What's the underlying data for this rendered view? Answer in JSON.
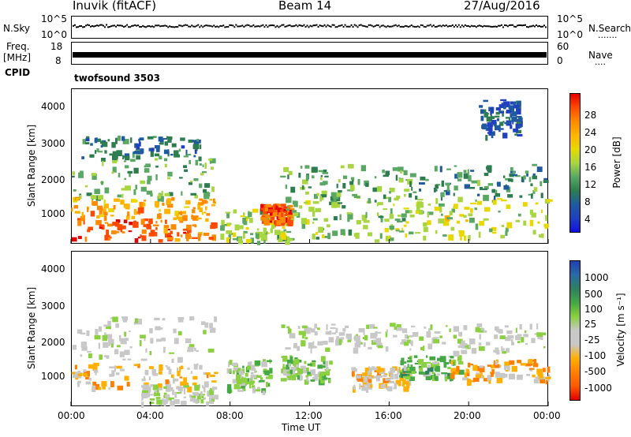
{
  "header": {
    "station": "Inuvik (fitACF)",
    "beam": "Beam 14",
    "date": "27/Aug/2016"
  },
  "nsky": {
    "label": "N.Sky",
    "left_ticks": [
      "10^5",
      "10^0"
    ],
    "right_ticks": [
      "10^5",
      "10^0"
    ],
    "right_label": "N.Search",
    "right_legend": "......."
  },
  "freq": {
    "label_top": "Freq.",
    "label_bottom": "[MHz]",
    "left_ticks": [
      "18",
      "8"
    ],
    "right_ticks": [
      "60",
      "0"
    ],
    "right_label": "Nave",
    "right_legend": "...."
  },
  "cpid": {
    "label": "CPID",
    "value": "twofsound 3503"
  },
  "axes": {
    "ylabel": "Slant Range [km]",
    "xlabel": "Time UT",
    "y_ticks": [
      "4000",
      "3000",
      "2000",
      "1000"
    ],
    "x_ticks": [
      "00:00",
      "04:00",
      "08:00",
      "12:00",
      "16:00",
      "20:00",
      "00:00"
    ]
  },
  "power_scale": {
    "label": "Power [dB]",
    "ticks": [
      "28",
      "24",
      "20",
      "16",
      "12",
      "8",
      "4"
    ],
    "colors": [
      "#e60000",
      "#ff4b00",
      "#ff8a00",
      "#ffb400",
      "#e8d800",
      "#a8d640",
      "#5aa864",
      "#2e7d50",
      "#1f5aa0",
      "#2040c0",
      "#1010e0"
    ]
  },
  "velocity_scale": {
    "label": "Velocity [m s⁻¹]",
    "ticks": [
      "1000",
      "500",
      "100",
      "25",
      "-25",
      "-100",
      "-500",
      "-1000"
    ],
    "colors": [
      "#2040b0",
      "#2a6aa8",
      "#2e8060",
      "#44a844",
      "#8ad040",
      "#c8c8c8",
      "#c8c8c8",
      "#ffb000",
      "#ff8000",
      "#ff5a00",
      "#e00000"
    ]
  },
  "chart_data": [
    {
      "type": "heatmap",
      "title": "Power",
      "xlabel": "Time UT",
      "ylabel": "Slant Range [km]",
      "xlim": [
        "00:00",
        "24:00"
      ],
      "ylim": [
        180,
        4500
      ],
      "colorbar": {
        "label": "Power [dB]",
        "range": [
          0,
          30
        ]
      },
      "bands": [
        {
          "t0": 0.0,
          "t1": 7.2,
          "r0": 300,
          "r1": 900,
          "value": 26
        },
        {
          "t0": 0.0,
          "t1": 7.2,
          "r0": 900,
          "r1": 1500,
          "value": 22
        },
        {
          "t0": 0.0,
          "t1": 7.2,
          "r0": 1500,
          "r1": 2600,
          "value": 12
        },
        {
          "t0": 0.5,
          "t1": 6.5,
          "r0": 2600,
          "r1": 3200,
          "value": 8
        },
        {
          "t0": 7.5,
          "t1": 11.0,
          "r0": 250,
          "r1": 1200,
          "value": 14
        },
        {
          "t0": 9.5,
          "t1": 11.0,
          "r0": 800,
          "r1": 1300,
          "value": 26
        },
        {
          "t0": 10.5,
          "t1": 17.0,
          "r0": 300,
          "r1": 1400,
          "value": 14
        },
        {
          "t0": 10.5,
          "t1": 17.0,
          "r0": 1400,
          "r1": 2400,
          "value": 12
        },
        {
          "t0": 17.0,
          "t1": 24.0,
          "r0": 400,
          "r1": 1500,
          "value": 16
        },
        {
          "t0": 17.0,
          "t1": 24.0,
          "r0": 1500,
          "r1": 2400,
          "value": 10
        },
        {
          "t0": 20.5,
          "t1": 22.5,
          "r0": 3200,
          "r1": 4200,
          "value": 6
        }
      ]
    },
    {
      "type": "heatmap",
      "title": "Velocity",
      "xlabel": "Time UT",
      "ylabel": "Slant Range [km]",
      "xlim": [
        "00:00",
        "24:00"
      ],
      "ylim": [
        180,
        4500
      ],
      "colorbar": {
        "label": "Velocity [m s⁻¹]",
        "range": [
          -1000,
          1000
        ]
      },
      "bands": [
        {
          "t0": 0.0,
          "t1": 7.2,
          "r0": 700,
          "r1": 1400,
          "value": -300
        },
        {
          "t0": 0.0,
          "t1": 7.2,
          "r0": 1500,
          "r1": 2700,
          "value": 0
        },
        {
          "t0": 3.5,
          "t1": 7.2,
          "r0": 300,
          "r1": 800,
          "value": 0
        },
        {
          "t0": 7.8,
          "t1": 10.0,
          "r0": 600,
          "r1": 1500,
          "value": 150
        },
        {
          "t0": 10.5,
          "t1": 13.0,
          "r0": 900,
          "r1": 1600,
          "value": 200
        },
        {
          "t0": 10.5,
          "t1": 17.0,
          "r0": 1800,
          "r1": 2500,
          "value": 0
        },
        {
          "t0": 14.0,
          "t1": 17.0,
          "r0": 700,
          "r1": 1300,
          "value": -300
        },
        {
          "t0": 16.5,
          "t1": 19.5,
          "r0": 1000,
          "r1": 1600,
          "value": 300
        },
        {
          "t0": 19.0,
          "t1": 24.0,
          "r0": 900,
          "r1": 1500,
          "value": -400
        },
        {
          "t0": 17.0,
          "t1": 24.0,
          "r0": 1700,
          "r1": 2500,
          "value": 0
        }
      ]
    }
  ]
}
